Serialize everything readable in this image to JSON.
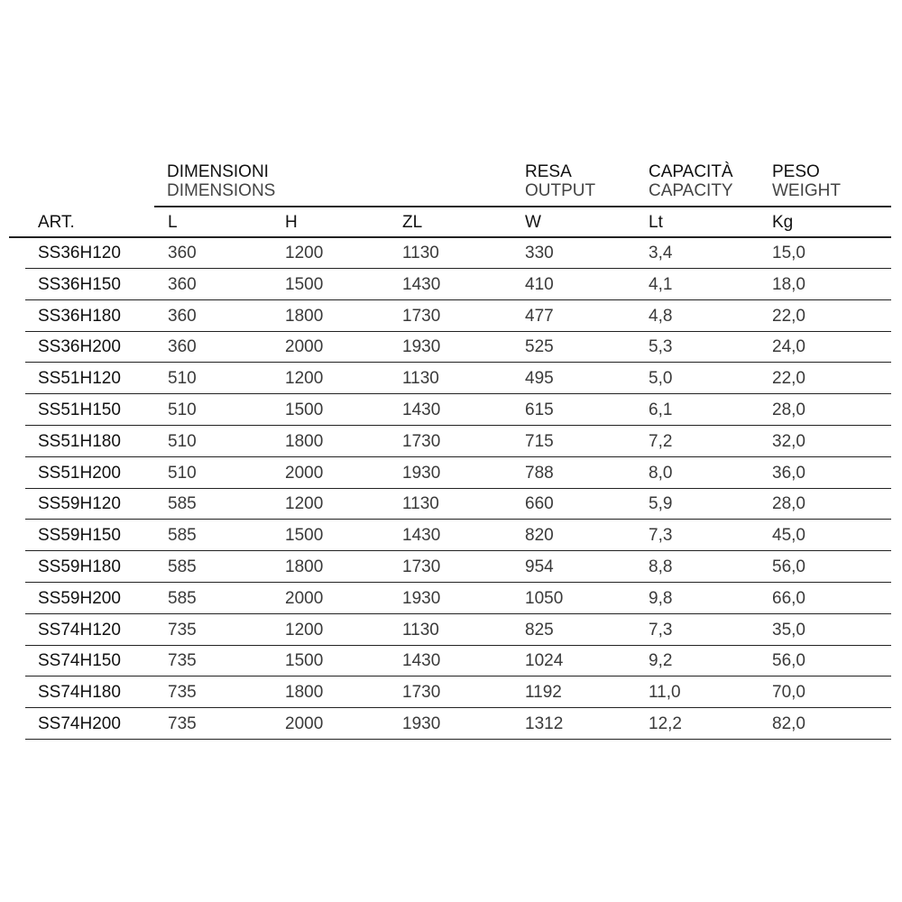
{
  "groups": [
    {
      "it": "DIMENSIONI",
      "en": "DIMENSIONS"
    },
    {
      "it": "RESA",
      "en": "OUTPUT"
    },
    {
      "it": "CAPACITÀ",
      "en": "CAPACITY"
    },
    {
      "it": "PESO",
      "en": "WEIGHT"
    }
  ],
  "columns": [
    "ART.",
    "L",
    "H",
    "ZL",
    "W",
    "Lt",
    "Kg"
  ],
  "rows": [
    [
      "SS36H120",
      "360",
      "1200",
      "1130",
      "330",
      "3,4",
      "15,0"
    ],
    [
      "SS36H150",
      "360",
      "1500",
      "1430",
      "410",
      "4,1",
      "18,0"
    ],
    [
      "SS36H180",
      "360",
      "1800",
      "1730",
      "477",
      "4,8",
      "22,0"
    ],
    [
      "SS36H200",
      "360",
      "2000",
      "1930",
      "525",
      "5,3",
      "24,0"
    ],
    [
      "SS51H120",
      "510",
      "1200",
      "1130",
      "495",
      "5,0",
      "22,0"
    ],
    [
      "SS51H150",
      "510",
      "1500",
      "1430",
      "615",
      "6,1",
      "28,0"
    ],
    [
      "SS51H180",
      "510",
      "1800",
      "1730",
      "715",
      "7,2",
      "32,0"
    ],
    [
      "SS51H200",
      "510",
      "2000",
      "1930",
      "788",
      "8,0",
      "36,0"
    ],
    [
      "SS59H120",
      "585",
      "1200",
      "1130",
      "660",
      "5,9",
      "28,0"
    ],
    [
      "SS59H150",
      "585",
      "1500",
      "1430",
      "820",
      "7,3",
      "45,0"
    ],
    [
      "SS59H180",
      "585",
      "1800",
      "1730",
      "954",
      "8,8",
      "56,0"
    ],
    [
      "SS59H200",
      "585",
      "2000",
      "1930",
      "1050",
      "9,8",
      "66,0"
    ],
    [
      "SS74H120",
      "735",
      "1200",
      "1130",
      "825",
      "7,3",
      "35,0"
    ],
    [
      "SS74H150",
      "735",
      "1500",
      "1430",
      "1024",
      "9,2",
      "56,0"
    ],
    [
      "SS74H180",
      "735",
      "1800",
      "1730",
      "1192",
      "11,0",
      "70,0"
    ],
    [
      "SS74H200",
      "735",
      "2000",
      "1930",
      "1312",
      "12,2",
      "82,0"
    ]
  ]
}
